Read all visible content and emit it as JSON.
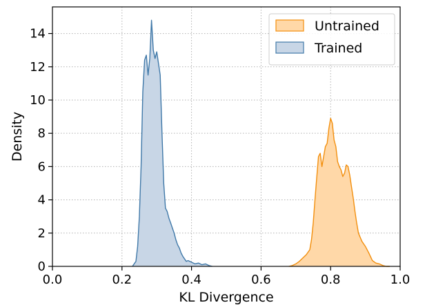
{
  "chart_data": {
    "type": "area",
    "title": "",
    "xlabel": "KL Divergence",
    "ylabel": "Density",
    "xlim": [
      0.0,
      1.0
    ],
    "ylim": [
      0,
      15.6
    ],
    "xticks": [
      "0.0",
      "0.2",
      "0.4",
      "0.6",
      "0.8",
      "1.0"
    ],
    "yticks": [
      "0",
      "2",
      "4",
      "6",
      "8",
      "10",
      "12",
      "14"
    ],
    "grid": true,
    "grid_style": "dotted",
    "legend_position": "top-right",
    "series": [
      {
        "name": "Untrained",
        "fill": "#ffd8a8",
        "stroke": "#f28e0c",
        "x": [
          0.68,
          0.69,
          0.7,
          0.71,
          0.72,
          0.73,
          0.74,
          0.745,
          0.75,
          0.755,
          0.76,
          0.765,
          0.77,
          0.775,
          0.78,
          0.785,
          0.79,
          0.795,
          0.8,
          0.805,
          0.81,
          0.815,
          0.82,
          0.825,
          0.83,
          0.835,
          0.84,
          0.845,
          0.85,
          0.855,
          0.86,
          0.865,
          0.87,
          0.875,
          0.88,
          0.89,
          0.9,
          0.91,
          0.92,
          0.93,
          0.94,
          0.95,
          0.96,
          0.97
        ],
        "y": [
          0.0,
          0.05,
          0.15,
          0.3,
          0.5,
          0.7,
          1.0,
          1.6,
          2.6,
          4.0,
          5.3,
          6.6,
          6.8,
          6.0,
          6.6,
          7.2,
          7.4,
          8.3,
          8.9,
          8.6,
          7.6,
          7.2,
          6.3,
          6.0,
          5.8,
          5.4,
          5.6,
          6.1,
          6.0,
          5.5,
          4.8,
          4.1,
          3.3,
          2.6,
          2.0,
          1.5,
          1.2,
          0.8,
          0.35,
          0.2,
          0.15,
          0.05,
          0.0,
          0.0
        ]
      },
      {
        "name": "Trained",
        "fill": "#c8d6e6",
        "stroke": "#3f78a8",
        "x": [
          0.23,
          0.24,
          0.245,
          0.25,
          0.255,
          0.26,
          0.265,
          0.27,
          0.275,
          0.28,
          0.285,
          0.29,
          0.295,
          0.3,
          0.305,
          0.31,
          0.315,
          0.32,
          0.325,
          0.33,
          0.335,
          0.34,
          0.345,
          0.35,
          0.355,
          0.36,
          0.365,
          0.37,
          0.375,
          0.38,
          0.385,
          0.39,
          0.4,
          0.41,
          0.42,
          0.43,
          0.44,
          0.45,
          0.46
        ],
        "y": [
          0.0,
          0.3,
          1.2,
          3.0,
          6.0,
          10.5,
          12.4,
          12.7,
          11.5,
          12.5,
          14.8,
          13.0,
          12.5,
          12.9,
          12.2,
          11.5,
          8.0,
          5.0,
          3.5,
          3.3,
          2.9,
          2.6,
          2.3,
          2.0,
          1.6,
          1.3,
          1.1,
          0.8,
          0.6,
          0.45,
          0.3,
          0.35,
          0.25,
          0.15,
          0.2,
          0.1,
          0.15,
          0.05,
          0.0
        ]
      }
    ]
  }
}
